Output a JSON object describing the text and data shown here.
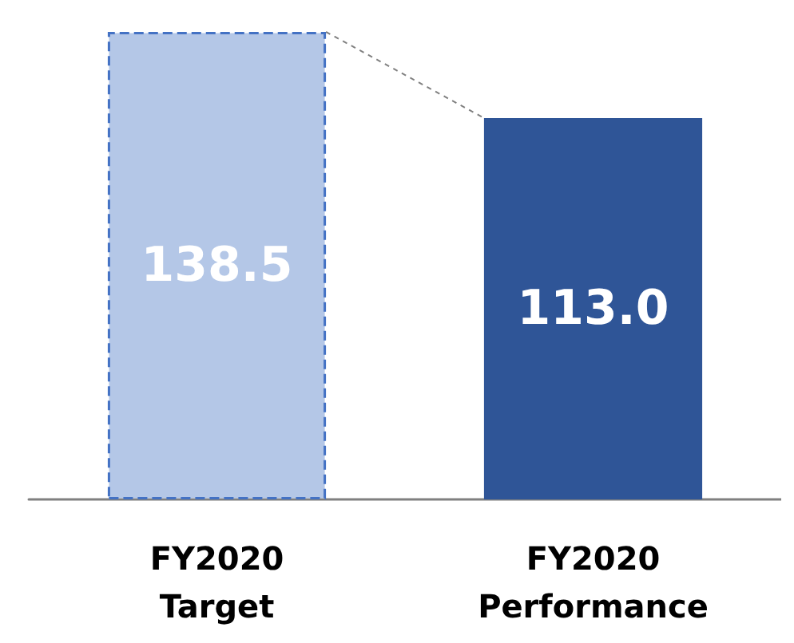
{
  "chart_data": {
    "type": "bar",
    "categories": [
      "FY2020\nTarget",
      "FY2020\nPerformance"
    ],
    "values": [
      138.5,
      113.0
    ],
    "colors": [
      "#b4c7e7",
      "#2f5597"
    ],
    "value_labels": [
      "138.5",
      "113.0"
    ]
  }
}
